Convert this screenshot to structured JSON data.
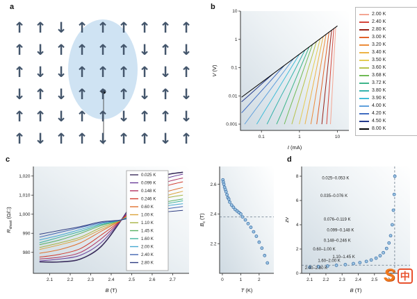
{
  "panels": {
    "a": {
      "label": "a",
      "up_symbol": "↑",
      "down_symbol": "↓",
      "spin_grid": [
        "uuduuuuuu",
        "uduuuudud",
        "udduuuudu",
        "duduuudud",
        "uuduuduud",
        "uduuduudu"
      ]
    },
    "b": {
      "label": "b"
    },
    "c": {
      "label": "c"
    },
    "d": {
      "label": "d"
    }
  },
  "watermark": {
    "s": "S",
    "zhong": "中"
  },
  "chart_data": [
    {
      "id": "vi",
      "type": "line",
      "xlabel_main": "I",
      "xlabel_unit": " (mA)",
      "ylabel_main": "V",
      "ylabel_unit": " (V)",
      "xscale": "log",
      "yscale": "log",
      "xlim": [
        0.028,
        20
      ],
      "ylim": [
        0.0006,
        10
      ],
      "xticks": [
        0.1,
        1,
        10
      ],
      "xtick_labels": [
        "0.1",
        "1",
        "10"
      ],
      "yticks": [
        10,
        1,
        0.1,
        0.01,
        0.001
      ],
      "ytick_labels": [
        "10",
        "1",
        "0.1",
        "0.01",
        "0.001"
      ],
      "legend_position": "right",
      "series": [
        {
          "name": "2.00 K",
          "color": "#f4a693",
          "points": [
            [
              6.56,
              0.001
            ],
            [
              6.86,
              0.003
            ],
            [
              7.19,
              0.01
            ],
            [
              7.52,
              0.03
            ],
            [
              7.89,
              0.1
            ],
            [
              8.24,
              0.3
            ],
            [
              8.65,
              1
            ],
            [
              9,
              2.7
            ]
          ]
        },
        {
          "name": "2.40 K",
          "color": "#d4453a",
          "points": [
            [
              5.19,
              0.001
            ],
            [
              5.52,
              0.003
            ],
            [
              5.9,
              0.01
            ],
            [
              6.27,
              0.03
            ],
            [
              6.7,
              0.1
            ],
            [
              7.13,
              0.3
            ],
            [
              7.62,
              1
            ],
            [
              8,
              2.4
            ]
          ]
        },
        {
          "name": "2.80 K",
          "color": "#971f15",
          "points": [
            [
              3.89,
              0.001
            ],
            [
              4.23,
              0.003
            ],
            [
              4.64,
              0.01
            ],
            [
              5.05,
              0.03
            ],
            [
              5.54,
              0.1
            ],
            [
              6.03,
              0.3
            ],
            [
              6.61,
              1
            ],
            [
              7,
              2.1
            ]
          ]
        },
        {
          "name": "3.00 K",
          "color": "#e2622b",
          "points": [
            [
              2.84,
              0.001
            ],
            [
              3.16,
              0.003
            ],
            [
              3.57,
              0.01
            ],
            [
              3.98,
              0.03
            ],
            [
              4.49,
              0.1
            ],
            [
              5.02,
              0.3
            ],
            [
              5.66,
              1
            ],
            [
              6,
              1.8
            ]
          ]
        },
        {
          "name": "3.20 K",
          "color": "#ec8c3a",
          "points": [
            [
              2.0,
              0.001
            ],
            [
              2.3,
              0.003
            ],
            [
              2.67,
              0.01
            ],
            [
              3.07,
              0.03
            ],
            [
              3.56,
              0.1
            ],
            [
              4.09,
              0.3
            ],
            [
              4.75,
              1
            ],
            [
              5,
              1.5
            ]
          ]
        },
        {
          "name": "3.40 K",
          "color": "#edb345",
          "points": [
            [
              1.4,
              0.001
            ],
            [
              1.66,
              0.003
            ],
            [
              2.0,
              0.01
            ],
            [
              2.36,
              0.03
            ],
            [
              2.84,
              0.1
            ],
            [
              3.37,
              0.3
            ],
            [
              4.05,
              1
            ],
            [
              4.2,
              1.26
            ]
          ]
        },
        {
          "name": "3.50 K",
          "color": "#e3cc52",
          "points": [
            [
              0.99,
              0.001
            ],
            [
              1.21,
              0.003
            ],
            [
              1.5,
              0.01
            ],
            [
              1.83,
              0.03
            ],
            [
              2.28,
              0.1
            ],
            [
              2.79,
              0.3
            ],
            [
              3.47,
              1
            ],
            [
              3.5,
              1.05
            ]
          ]
        },
        {
          "name": "3.60 K",
          "color": "#b5c24a",
          "points": [
            [
              0.63,
              0.001
            ],
            [
              0.8,
              0.003
            ],
            [
              1.05,
              0.01
            ],
            [
              1.34,
              0.03
            ],
            [
              1.74,
              0.1
            ],
            [
              2.23,
              0.3
            ],
            [
              2.8,
              0.84
            ]
          ]
        },
        {
          "name": "3.68 K",
          "color": "#6fba55",
          "points": [
            [
              0.4,
              0.001
            ],
            [
              0.53,
              0.003
            ],
            [
              0.73,
              0.01
            ],
            [
              0.98,
              0.03
            ],
            [
              1.34,
              0.1
            ],
            [
              1.79,
              0.3
            ],
            [
              2.2,
              0.66
            ]
          ]
        },
        {
          "name": "3.72 K",
          "color": "#3eb58a",
          "points": [
            [
              0.25,
              0.001
            ],
            [
              0.36,
              0.003
            ],
            [
              0.52,
              0.01
            ],
            [
              0.73,
              0.03
            ],
            [
              1.06,
              0.1
            ],
            [
              1.5,
              0.3
            ],
            [
              1.8,
              0.54
            ]
          ]
        },
        {
          "name": "3.80 K",
          "color": "#35b3ad",
          "points": [
            [
              0.14,
              0.001
            ],
            [
              0.21,
              0.003
            ],
            [
              0.33,
              0.01
            ],
            [
              0.51,
              0.03
            ],
            [
              0.81,
              0.1
            ],
            [
              1.23,
              0.3
            ],
            [
              1.4,
              0.42
            ]
          ]
        },
        {
          "name": "3.90 K",
          "color": "#3fbcd8",
          "points": [
            [
              0.075,
              0.001
            ],
            [
              0.123,
              0.003
            ],
            [
              0.213,
              0.01
            ],
            [
              0.351,
              0.03
            ],
            [
              0.607,
              0.1
            ],
            [
              1.0,
              0.3
            ]
          ]
        },
        {
          "name": "4.00 K",
          "color": "#5fa0dc",
          "points": [
            [
              0.036,
              0.001
            ],
            [
              0.066,
              0.003
            ],
            [
              0.129,
              0.01
            ],
            [
              0.237,
              0.03
            ],
            [
              0.464,
              0.1
            ],
            [
              0.7,
              0.21
            ]
          ]
        },
        {
          "name": "4.20 K",
          "color": "#3f6cc0",
          "points": [
            [
              0.03,
              0.0025
            ],
            [
              0.034,
              0.003
            ],
            [
              0.076,
              0.01
            ],
            [
              0.159,
              0.03
            ],
            [
              0.354,
              0.1
            ],
            [
              0.4,
              0.12
            ]
          ]
        },
        {
          "name": "4.50 K",
          "color": "#243a8c",
          "points": [
            [
              0.03,
              0.0062
            ],
            [
              0.045,
              0.01
            ],
            [
              0.112,
              0.03
            ],
            [
              0.2,
              0.06
            ]
          ]
        },
        {
          "name": "8.00 K",
          "color": "#000000",
          "points": [
            [
              0.03,
              0.009
            ],
            [
              10,
              3
            ]
          ]
        }
      ]
    },
    {
      "id": "rb",
      "type": "line",
      "xlabel_main": "B",
      "xlabel_unit": " (T)",
      "ylabel_main": "R",
      "ylabel_sub": "sheet",
      "ylabel_unit": " (Ω/□)",
      "xlim": [
        2.02,
        2.78
      ],
      "ylim": [
        969,
        1025
      ],
      "xticks": [
        2.1,
        2.2,
        2.3,
        2.4,
        2.5,
        2.6,
        2.7
      ],
      "xtick_labels": [
        "2.1",
        "2.2",
        "2.3",
        "2.4",
        "2.5",
        "2.6",
        "2.7"
      ],
      "yticks": [
        980,
        990,
        1000,
        1010,
        1020
      ],
      "ytick_labels": [
        "980",
        "990",
        "1,000",
        "1,010",
        "1,020"
      ],
      "legend_position": "inside-right",
      "x": [
        2.05,
        2.15,
        2.25,
        2.35,
        2.45,
        2.55,
        2.65,
        2.75
      ],
      "series": [
        {
          "name": "0.025 K",
          "color": "#3a2d5c",
          "width": 1.6,
          "values": [
            975,
            975,
            976.5,
            983,
            997,
            1013,
            1020,
            1022
          ]
        },
        {
          "name": "0.099 K",
          "color": "#6a3d9a",
          "values": [
            975.5,
            976.5,
            978.5,
            985,
            997,
            1011,
            1018,
            1021
          ]
        },
        {
          "name": "0.148 K",
          "color": "#b03060",
          "values": [
            976.5,
            977.5,
            980,
            987,
            997,
            1009,
            1016,
            1019
          ]
        },
        {
          "name": "0.246 K",
          "color": "#d03a2c",
          "values": [
            977.5,
            979,
            982,
            989,
            997,
            1007,
            1014,
            1017
          ]
        },
        {
          "name": "0.60 K",
          "color": "#e0702e",
          "values": [
            979.5,
            981.5,
            985,
            991,
            997,
            1005,
            1011,
            1014
          ]
        },
        {
          "name": "1.00 K",
          "color": "#dba33a",
          "values": [
            981.5,
            984,
            987,
            992,
            997,
            1004,
            1009,
            1012
          ]
        },
        {
          "name": "1.10 K",
          "color": "#a8b440",
          "values": [
            982.5,
            985,
            988,
            993,
            997,
            1003.5,
            1008,
            1010
          ]
        },
        {
          "name": "1.45 K",
          "color": "#57b060",
          "values": [
            984,
            986.5,
            990,
            994,
            997,
            1002.5,
            1006,
            1008
          ]
        },
        {
          "name": "1.60 K",
          "color": "#3cb49a",
          "values": [
            985,
            988,
            991,
            994.5,
            997,
            1002,
            1005,
            1007
          ]
        },
        {
          "name": "2.00 K",
          "color": "#45a8d0",
          "values": [
            986.5,
            989,
            992,
            995,
            997,
            1001.5,
            1004,
            1005.5
          ]
        },
        {
          "name": "2.40 K",
          "color": "#3f63b0",
          "values": [
            988,
            990.5,
            993,
            995.5,
            997,
            1000.5,
            1002.5,
            1004
          ]
        },
        {
          "name": "2.80 K",
          "color": "#2c3a80",
          "values": [
            989.5,
            991.5,
            993.5,
            996,
            997,
            999.5,
            1001,
            1002
          ]
        }
      ]
    },
    {
      "id": "bc",
      "type": "scatter",
      "xlabel_main": "T",
      "xlabel_unit": " (K)",
      "ylabel_main": "B",
      "ylabel_sub": "c",
      "ylabel_unit": " (T)",
      "xlim": [
        -0.15,
        2.8
      ],
      "ylim": [
        2.0,
        2.72
      ],
      "xticks": [
        0,
        1,
        2
      ],
      "xtick_labels": [
        "0",
        "1",
        "2"
      ],
      "yticks": [
        2.2,
        2.4,
        2.6
      ],
      "ytick_labels": [
        "2.2",
        "2.4",
        "2.6"
      ],
      "marker": {
        "r": 2,
        "fill": "#9ec6e4",
        "stroke": "#3f72a8"
      },
      "dashed_h": 2.38,
      "points": [
        [
          0.03,
          2.63
        ],
        [
          0.05,
          2.615
        ],
        [
          0.08,
          2.6
        ],
        [
          0.12,
          2.58
        ],
        [
          0.16,
          2.565
        ],
        [
          0.2,
          2.55
        ],
        [
          0.25,
          2.53
        ],
        [
          0.3,
          2.51
        ],
        [
          0.35,
          2.5
        ],
        [
          0.4,
          2.48
        ],
        [
          0.5,
          2.46
        ],
        [
          0.6,
          2.445
        ],
        [
          0.7,
          2.43
        ],
        [
          0.8,
          2.42
        ],
        [
          0.9,
          2.41
        ],
        [
          1.0,
          2.4
        ],
        [
          1.1,
          2.38
        ],
        [
          1.25,
          2.36
        ],
        [
          1.4,
          2.335
        ],
        [
          1.55,
          2.31
        ],
        [
          1.7,
          2.28
        ],
        [
          1.85,
          2.25
        ],
        [
          2.0,
          2.21
        ],
        [
          2.15,
          2.17
        ],
        [
          2.3,
          2.12
        ],
        [
          2.45,
          2.07
        ]
      ]
    },
    {
      "id": "znu",
      "type": "scatter",
      "xlabel_main": "B",
      "xlabel_unit": " (T)",
      "ylabel_main": "zν",
      "ylabel_sub": "",
      "ylabel_unit": "",
      "xlim": [
        2.05,
        2.72
      ],
      "ylim": [
        0,
        8.8
      ],
      "xticks": [
        2.1,
        2.2,
        2.3,
        2.4,
        2.5,
        2.6,
        2.7
      ],
      "xtick_labels": [
        "2.1",
        "2.2",
        "2.3",
        "2.4",
        "2.5",
        "2.6",
        "2.7"
      ],
      "yticks": [
        0,
        2,
        4,
        6,
        8
      ],
      "ytick_labels": [
        "0",
        "2",
        "4",
        "6",
        "8"
      ],
      "marker": {
        "r": 2,
        "fill": "#9ec6e4",
        "stroke": "#3f72a8"
      },
      "dashed_h": 0.67,
      "dashed_v": 2.625,
      "points": [
        [
          2.1,
          0.5
        ],
        [
          2.155,
          0.55
        ],
        [
          2.21,
          0.6
        ],
        [
          2.265,
          0.66
        ],
        [
          2.32,
          0.72
        ],
        [
          2.37,
          0.8
        ],
        [
          2.41,
          0.88
        ],
        [
          2.45,
          0.98
        ],
        [
          2.48,
          1.1
        ],
        [
          2.51,
          1.25
        ],
        [
          2.535,
          1.45
        ],
        [
          2.555,
          1.7
        ],
        [
          2.575,
          2.05
        ],
        [
          2.59,
          2.5
        ],
        [
          2.6,
          3.1
        ],
        [
          2.61,
          4.0
        ],
        [
          2.617,
          5.2
        ],
        [
          2.622,
          6.5
        ],
        [
          2.626,
          8.0
        ]
      ],
      "annotations": [
        {
          "x": 2.26,
          "y": 7.75,
          "text": "0.025–0.053 K"
        },
        {
          "x": 2.25,
          "y": 6.3,
          "text": "0.035–0.076 K"
        },
        {
          "x": 2.27,
          "y": 4.35,
          "text": "0.076–0.119 K"
        },
        {
          "x": 2.29,
          "y": 3.45,
          "text": "0.099–0.148 K"
        },
        {
          "x": 2.27,
          "y": 2.6,
          "text": "0.148–0.246 K"
        },
        {
          "x": 2.19,
          "y": 1.9,
          "text": "0.60–1.00 K"
        },
        {
          "x": 2.31,
          "y": 1.25,
          "text": "1.10–1.45 K"
        },
        {
          "x": 2.22,
          "y": 0.95,
          "text": "1.60–2.00 K"
        },
        {
          "x": 2.14,
          "y": 0.35,
          "text": "2.40–2.80 K"
        }
      ]
    }
  ]
}
